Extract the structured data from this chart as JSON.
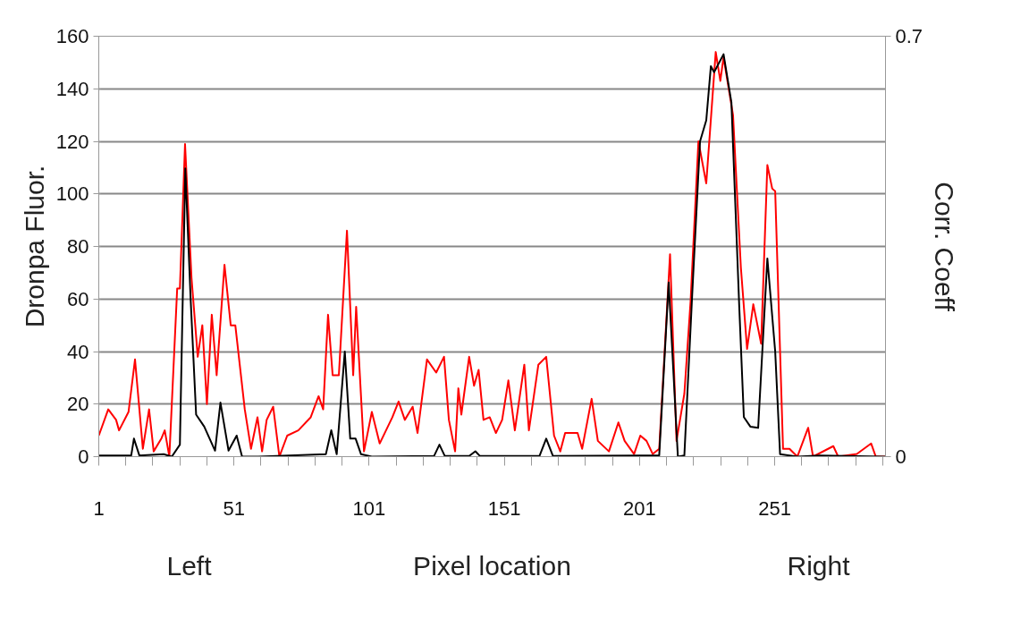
{
  "chart_data": {
    "type": "line",
    "xlabel": "Pixel location",
    "ylabel": "Dronpa Fluor.",
    "y2label": "Corr. Coeff",
    "annotations": [
      "Left",
      "Right"
    ],
    "xlim": [
      1,
      292
    ],
    "xticks": [
      1,
      {
        "value": 11,
        "label": null
      },
      {
        "value": 21,
        "label": null
      },
      {
        "value": 31,
        "label": null
      },
      {
        "value": 41,
        "label": null
      },
      51,
      {
        "value": 61,
        "label": null
      },
      {
        "value": 71,
        "label": null
      },
      {
        "value": 81,
        "label": null
      },
      {
        "value": 91,
        "label": null
      },
      101,
      {
        "value": 111,
        "label": null
      },
      {
        "value": 121,
        "label": null
      },
      {
        "value": 131,
        "label": null
      },
      {
        "value": 141,
        "label": null
      },
      151,
      {
        "value": 161,
        "label": null
      },
      {
        "value": 171,
        "label": null
      },
      {
        "value": 181,
        "label": null
      },
      {
        "value": 191,
        "label": null
      },
      201,
      {
        "value": 211,
        "label": null
      },
      {
        "value": 221,
        "label": null
      },
      {
        "value": 231,
        "label": null
      },
      {
        "value": 241,
        "label": null
      },
      251,
      {
        "value": 261,
        "label": null
      },
      {
        "value": 271,
        "label": null
      },
      {
        "value": 281,
        "label": null
      },
      {
        "value": 291,
        "label": null
      }
    ],
    "ylim": [
      0,
      160
    ],
    "yticks": [
      0,
      20,
      40,
      60,
      80,
      100,
      120,
      140,
      160
    ],
    "y2lim": [
      0,
      0.7
    ],
    "y2ticks": [
      0,
      0.7
    ],
    "grid": "y",
    "marker": "none",
    "line_style": "solid",
    "series": [
      {
        "color": "#ff0000",
        "x": [
          1,
          4.5,
          7.4,
          8.5,
          12,
          14.4,
          17.3,
          19.6,
          21.3,
          24.2,
          25.4,
          27.1,
          30,
          31,
          32.9,
          35.3,
          37.6,
          39.3,
          41,
          42.8,
          44.6,
          47.5,
          49.8,
          51.5,
          55,
          57.3,
          59.7,
          61.4,
          63.1,
          65.5,
          67.8,
          70.7,
          74.8,
          79.4,
          82.3,
          84,
          85.8,
          87.5,
          89.8,
          92.8,
          95.1,
          96.2,
          99.1,
          102,
          104.9,
          109.6,
          111.9,
          114.2,
          117.1,
          118.9,
          122.4,
          125.8,
          128.7,
          130.5,
          132.8,
          134,
          135.1,
          138,
          139.8,
          141.5,
          143.3,
          145.6,
          147.9,
          150.2,
          152.5,
          154.9,
          158.4,
          160.1,
          163.6,
          166.5,
          169.4,
          171.7,
          173.5,
          178.1,
          179.8,
          183.3,
          185.6,
          189.7,
          193.2,
          195.5,
          199,
          201.3,
          203.6,
          205.9,
          208.3,
          212.3,
          214.7,
          217.6,
          219.9,
          222.8,
          225.7,
          229.2,
          230.9,
          232.1,
          235.6,
          238.5,
          240.8,
          243.1,
          246,
          248.3,
          250.1,
          251.2,
          254.1,
          256.5,
          259.4,
          263.4,
          265.2,
          272.7,
          274.5,
          281.4,
          286.7,
          288.4,
          291.9
        ],
        "values": [
          8,
          18,
          14,
          10,
          17,
          37,
          3,
          18,
          2,
          7,
          10,
          0,
          64,
          64,
          119,
          68,
          38,
          50,
          20,
          54,
          31,
          73,
          50,
          50,
          18,
          3,
          15,
          2,
          14,
          19,
          0,
          8,
          10,
          15,
          23,
          18,
          54,
          31,
          31,
          86,
          31,
          57,
          2,
          17,
          5,
          15,
          21,
          14,
          19,
          9,
          37,
          32,
          38,
          14,
          2,
          26,
          16,
          38,
          27,
          33,
          14,
          15,
          9,
          14,
          29,
          10,
          35,
          10,
          35,
          38,
          8,
          2,
          9,
          9,
          3,
          22,
          6,
          2,
          13,
          6,
          1,
          8,
          6,
          1,
          3,
          77,
          6,
          24,
          59,
          120,
          104,
          154,
          143,
          152,
          130,
          72,
          41,
          58,
          43,
          111,
          102,
          101,
          3,
          3,
          0,
          11,
          0,
          4,
          0,
          1,
          5,
          0,
          0
        ]
      },
      {
        "color": "#000000",
        "axis": "y2",
        "x": [
          1,
          13,
          14,
          16,
          25,
          28,
          31,
          33,
          35,
          37,
          40,
          44,
          46,
          49,
          52,
          54,
          60,
          85,
          87,
          89,
          92,
          94,
          96,
          98,
          102,
          125,
          127,
          129,
          138,
          140.3,
          142,
          164,
          166.5,
          169,
          201.3,
          208.3,
          211.8,
          215.2,
          217.6,
          220.5,
          223.4,
          225.7,
          227.4,
          228.6,
          232.1,
          235,
          237.9,
          239.6,
          242,
          244.9,
          248.3,
          251.2,
          253,
          259.4,
          267.5,
          291.9
        ],
        "values": [
          0.002,
          0.002,
          0.03,
          0.002,
          0.004,
          0,
          0.02,
          0.48,
          0.26,
          0.07,
          0.05,
          0.01,
          0.09,
          0.01,
          0.035,
          0,
          0,
          0.004,
          0.044,
          0.004,
          0.175,
          0.03,
          0.03,
          0.004,
          0,
          0.001,
          0.02,
          0.001,
          0.001,
          0.009,
          0.001,
          0.001,
          0.03,
          0.001,
          0.002,
          0.002,
          0.29,
          0,
          0.002,
          0.27,
          0.525,
          0.56,
          0.65,
          0.64,
          0.67,
          0.59,
          0.25,
          0.066,
          0.05,
          0.048,
          0.33,
          0.175,
          0.004,
          0,
          0.002,
          0
        ]
      }
    ]
  }
}
